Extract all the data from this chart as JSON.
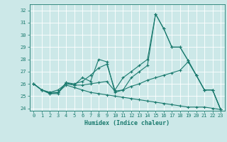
{
  "title": "",
  "xlabel": "Humidex (Indice chaleur)",
  "xlim": [
    -0.5,
    23.5
  ],
  "ylim": [
    23.8,
    32.5
  ],
  "yticks": [
    24,
    25,
    26,
    27,
    28,
    29,
    30,
    31,
    32
  ],
  "xticks": [
    0,
    1,
    2,
    3,
    4,
    5,
    6,
    7,
    8,
    9,
    10,
    11,
    12,
    13,
    14,
    15,
    16,
    17,
    18,
    19,
    20,
    21,
    22,
    23
  ],
  "bg_color": "#cce8e8",
  "grid_color": "#b0d8d8",
  "line_color": "#1a7a6e",
  "series": [
    [
      26.0,
      25.5,
      25.2,
      25.2,
      26.1,
      25.9,
      26.5,
      26.2,
      28.0,
      27.8,
      25.3,
      25.5,
      26.5,
      27.0,
      27.5,
      31.7,
      30.5,
      29.0,
      29.0,
      27.9,
      26.7,
      25.5,
      25.5,
      23.9
    ],
    [
      26.0,
      25.5,
      25.2,
      25.3,
      26.1,
      26.0,
      26.2,
      26.7,
      27.3,
      27.6,
      25.5,
      26.5,
      27.0,
      27.5,
      28.0,
      31.7,
      30.5,
      29.0,
      29.0,
      27.9,
      26.7,
      25.5,
      25.5,
      23.9
    ],
    [
      26.0,
      25.5,
      25.3,
      25.5,
      26.0,
      25.9,
      25.9,
      26.0,
      26.1,
      26.2,
      25.4,
      25.5,
      25.8,
      26.0,
      26.3,
      26.5,
      26.7,
      26.9,
      27.1,
      27.8,
      26.7,
      25.5,
      25.5,
      23.9
    ],
    [
      26.0,
      25.5,
      25.3,
      25.3,
      25.9,
      25.7,
      25.5,
      25.3,
      25.2,
      25.1,
      25.0,
      24.9,
      24.8,
      24.7,
      24.6,
      24.5,
      24.4,
      24.3,
      24.2,
      24.1,
      24.1,
      24.1,
      24.0,
      23.9
    ]
  ]
}
